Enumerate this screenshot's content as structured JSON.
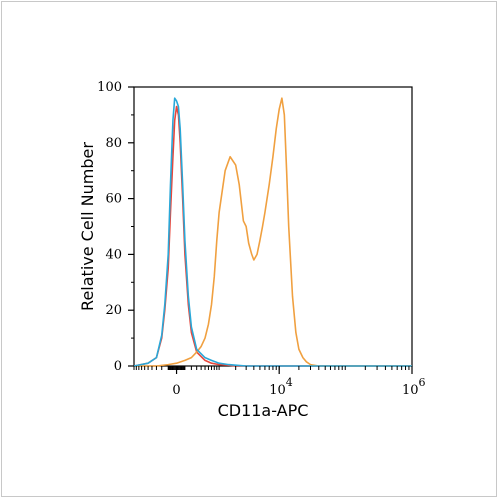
{
  "chart_data": {
    "type": "line",
    "title": "",
    "xlabel": "CD11a-APC",
    "ylabel": "Relative Cell Number",
    "x_scale": "biexponential",
    "xlim": [
      -1000,
      1000000
    ],
    "ylim": [
      0,
      100
    ],
    "y_ticks": [
      0,
      20,
      40,
      60,
      80,
      100
    ],
    "x_ticks": [
      {
        "value": 0,
        "label": "0"
      },
      {
        "value": 10000,
        "label": "10",
        "exponent": "4"
      },
      {
        "value": 1000000,
        "label": "10",
        "exponent": "6"
      }
    ],
    "grid": false,
    "legend": "none",
    "series": [
      {
        "color": "#e8473c",
        "x": [
          -1000,
          -500,
          -300,
          -200,
          -150,
          -100,
          -70,
          -40,
          -20,
          0,
          20,
          40,
          70,
          100,
          150,
          200,
          300,
          500,
          700,
          1000,
          1500,
          2000,
          3000,
          5000,
          10000,
          100000,
          1000000
        ],
        "y": [
          0,
          1,
          3,
          10,
          20,
          35,
          55,
          75,
          88,
          93,
          90,
          80,
          60,
          40,
          22,
          12,
          5,
          2,
          1,
          0.5,
          0.3,
          0,
          0,
          0,
          0,
          0,
          0
        ]
      },
      {
        "color": "#f0a040",
        "x": [
          -1000,
          -300,
          -100,
          0,
          100,
          200,
          300,
          400,
          500,
          600,
          700,
          800,
          900,
          1000,
          1300,
          1600,
          2000,
          2300,
          2700,
          3000,
          3300,
          3700,
          4000,
          4500,
          5000,
          5500,
          6000,
          7000,
          8000,
          9000,
          10000,
          11000,
          12000,
          13000,
          14000,
          16000,
          18000,
          20000,
          23000,
          26000,
          30000,
          40000,
          100000,
          1000000
        ],
        "y": [
          0,
          0,
          0.5,
          1,
          2,
          3,
          5,
          7,
          10,
          15,
          22,
          32,
          45,
          55,
          70,
          75,
          72,
          65,
          52,
          50,
          44,
          40,
          38,
          40,
          45,
          50,
          55,
          65,
          75,
          85,
          92,
          96,
          90,
          70,
          50,
          25,
          12,
          6,
          3,
          1.5,
          0.5,
          0,
          0,
          0
        ]
      },
      {
        "color": "#2aa8d8",
        "x": [
          -1000,
          -500,
          -300,
          -200,
          -150,
          -100,
          -70,
          -40,
          -20,
          0,
          20,
          40,
          70,
          100,
          150,
          200,
          300,
          500,
          700,
          1000,
          1500,
          2000,
          3000,
          5000,
          10000,
          100000,
          1000000
        ],
        "y": [
          0,
          1,
          3,
          11,
          22,
          40,
          65,
          88,
          96,
          95,
          93,
          85,
          65,
          45,
          25,
          14,
          6,
          3,
          2,
          1,
          0.5,
          0.3,
          0,
          0,
          0,
          0,
          0
        ]
      }
    ]
  }
}
